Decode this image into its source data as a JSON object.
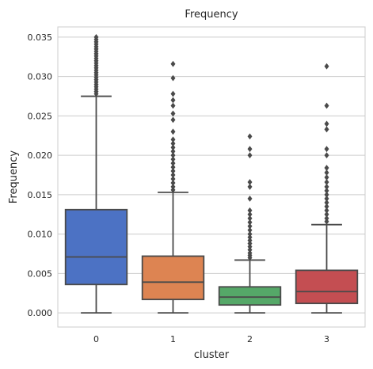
{
  "chart_data": {
    "type": "box",
    "title": "Frequency",
    "xlabel": "cluster",
    "ylabel": "Frequency",
    "categories": [
      "0",
      "1",
      "2",
      "3"
    ],
    "ylim": [
      -0.0018,
      0.0363
    ],
    "yticks": [
      0.0,
      0.005,
      0.01,
      0.015,
      0.02,
      0.025,
      0.03,
      0.035
    ],
    "ytick_labels": [
      "0.000",
      "0.005",
      "0.010",
      "0.015",
      "0.020",
      "0.025",
      "0.030",
      "0.035"
    ],
    "grid": "horizontal",
    "colors": [
      "#4c72c4",
      "#dd8452",
      "#55a868",
      "#c44e52"
    ],
    "line_color": "#4a4a4a",
    "boxes": [
      {
        "category": "0",
        "whislo": 0.0,
        "q1": 0.0036,
        "med": 0.0071,
        "q3": 0.0131,
        "whishi": 0.0275,
        "fliers": [
          0.0278,
          0.0281,
          0.0284,
          0.0287,
          0.029,
          0.0293,
          0.0296,
          0.0299,
          0.0302,
          0.0305,
          0.0308,
          0.0311,
          0.0314,
          0.0317,
          0.032,
          0.0323,
          0.0326,
          0.0329,
          0.0332,
          0.0335,
          0.0338,
          0.0341,
          0.0344,
          0.0347,
          0.035
        ]
      },
      {
        "category": "1",
        "whislo": 0.0,
        "q1": 0.0017,
        "med": 0.0039,
        "q3": 0.0072,
        "whishi": 0.0153,
        "fliers": [
          0.0156,
          0.016,
          0.0165,
          0.017,
          0.0175,
          0.018,
          0.0185,
          0.019,
          0.0195,
          0.02,
          0.0205,
          0.021,
          0.0215,
          0.022,
          0.023,
          0.0245,
          0.0253,
          0.0263,
          0.027,
          0.0278,
          0.0298,
          0.0316
        ]
      },
      {
        "category": "2",
        "whislo": 0.0,
        "q1": 0.001,
        "med": 0.002,
        "q3": 0.0033,
        "whishi": 0.0067,
        "fliers": [
          0.007,
          0.0073,
          0.0076,
          0.008,
          0.0084,
          0.0088,
          0.0092,
          0.0096,
          0.01,
          0.0105,
          0.011,
          0.0115,
          0.012,
          0.0125,
          0.013,
          0.0145,
          0.016,
          0.0166,
          0.02,
          0.0208,
          0.0224
        ]
      },
      {
        "category": "3",
        "whislo": 0.0,
        "q1": 0.0012,
        "med": 0.0027,
        "q3": 0.0054,
        "whishi": 0.0112,
        "fliers": [
          0.0116,
          0.012,
          0.0125,
          0.013,
          0.0135,
          0.014,
          0.0145,
          0.015,
          0.0155,
          0.016,
          0.0166,
          0.0172,
          0.0178,
          0.0184,
          0.02,
          0.0208,
          0.0233,
          0.024,
          0.0263,
          0.0313
        ]
      }
    ]
  }
}
